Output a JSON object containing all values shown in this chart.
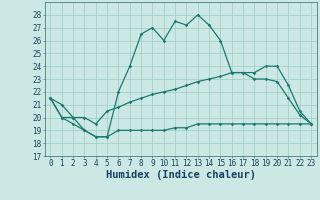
{
  "xlabel": "Humidex (Indice chaleur)",
  "x": [
    0,
    1,
    2,
    3,
    4,
    5,
    6,
    7,
    8,
    9,
    10,
    11,
    12,
    13,
    14,
    15,
    16,
    17,
    18,
    19,
    20,
    21,
    22,
    23
  ],
  "line1": [
    21.5,
    21.0,
    20.0,
    19.0,
    18.5,
    18.5,
    22.0,
    24.0,
    26.5,
    27.0,
    26.0,
    27.5,
    27.2,
    28.0,
    27.2,
    26.0,
    23.5,
    23.5,
    23.5,
    24.0,
    24.0,
    22.5,
    20.5,
    19.5
  ],
  "line2": [
    21.5,
    20.0,
    20.0,
    20.0,
    19.5,
    20.5,
    20.8,
    21.2,
    21.5,
    21.8,
    22.0,
    22.2,
    22.5,
    22.8,
    23.0,
    23.2,
    23.5,
    23.5,
    23.0,
    23.0,
    22.8,
    21.5,
    20.2,
    19.5
  ],
  "line3": [
    21.5,
    20.0,
    19.5,
    19.0,
    18.5,
    18.5,
    19.0,
    19.0,
    19.0,
    19.0,
    19.0,
    19.2,
    19.2,
    19.5,
    19.5,
    19.5,
    19.5,
    19.5,
    19.5,
    19.5,
    19.5,
    19.5,
    19.5,
    19.5
  ],
  "ylim": [
    17,
    29
  ],
  "xlim_min": -0.5,
  "xlim_max": 23.5,
  "yticks": [
    17,
    18,
    19,
    20,
    21,
    22,
    23,
    24,
    25,
    26,
    27,
    28
  ],
  "xticks": [
    0,
    1,
    2,
    3,
    4,
    5,
    6,
    7,
    8,
    9,
    10,
    11,
    12,
    13,
    14,
    15,
    16,
    17,
    18,
    19,
    20,
    21,
    22,
    23
  ],
  "line_color": "#1a7a6e",
  "bg_color": "#cce8e4",
  "grid_color": "#9eccc6",
  "tick_fontsize": 5.5,
  "xlabel_fontsize": 7.5
}
